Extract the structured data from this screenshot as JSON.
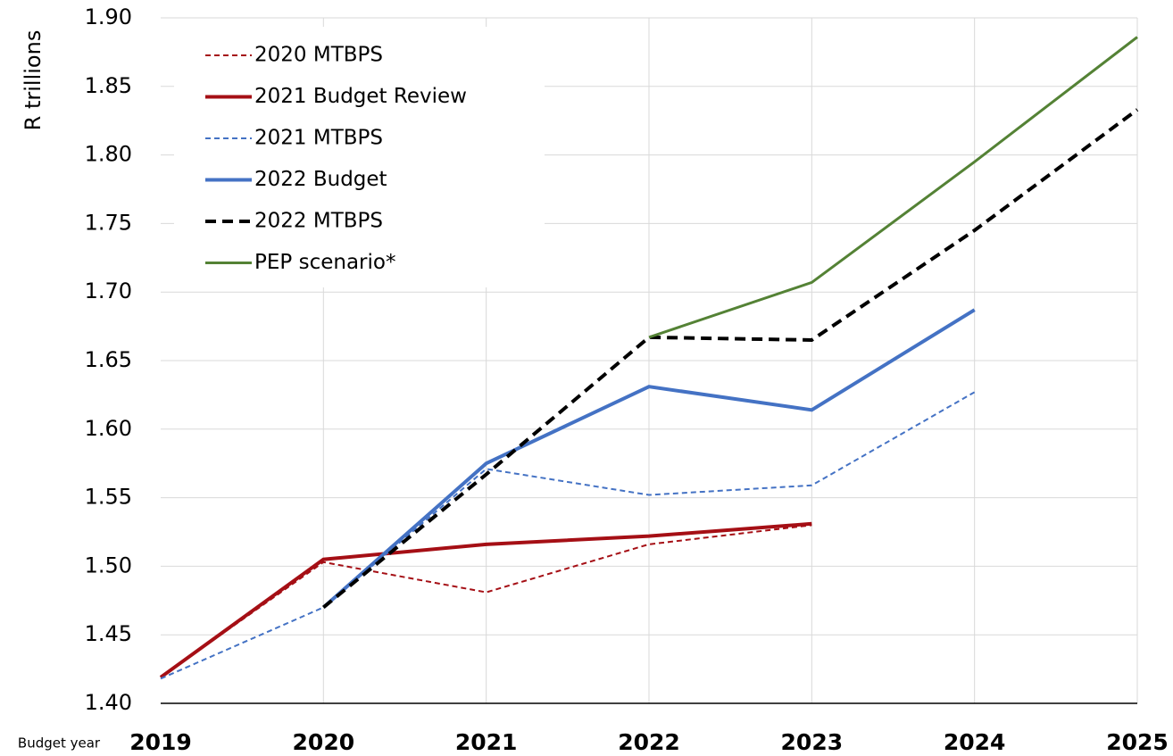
{
  "chart_data": {
    "type": "line",
    "y_label": "R trillions",
    "x_label": "Budget year",
    "categories": [
      "2019",
      "2020",
      "2021",
      "2022",
      "2023",
      "2024",
      "2025"
    ],
    "ylim": [
      1.4,
      1.9
    ],
    "yticks": [
      {
        "value": 1.4,
        "label": "1.40"
      },
      1.45,
      {
        "value": 1.5,
        "label": "1.50"
      },
      1.55,
      {
        "value": 1.6,
        "label": "1.60"
      },
      1.65,
      {
        "value": 1.7,
        "label": "1.70"
      },
      1.75,
      {
        "value": 1.8,
        "label": "1.80"
      },
      1.85,
      {
        "value": 1.9,
        "label": "1.90"
      }
    ],
    "grid": true,
    "legend": "upper left",
    "series": [
      {
        "name": "2020 MTBPS",
        "color": "#a50f15",
        "linestyle": "dashed",
        "weight": "thin",
        "values": [
          1.419,
          1.503,
          1.481,
          1.516,
          1.53,
          null,
          null
        ]
      },
      {
        "name": "2021 Budget Review",
        "color": "#a50f15",
        "linestyle": "solid",
        "weight": "bold",
        "values": [
          1.419,
          1.505,
          1.516,
          1.522,
          1.531,
          null,
          null
        ]
      },
      {
        "name": "2021 MTBPS",
        "color": "#4472c4",
        "linestyle": "dashed",
        "weight": "thin",
        "values": [
          1.418,
          1.47,
          1.571,
          1.552,
          1.559,
          1.627,
          null
        ]
      },
      {
        "name": "2022 Budget",
        "color": "#4472c4",
        "linestyle": "solid",
        "weight": "bold",
        "values": [
          null,
          1.47,
          1.575,
          1.631,
          1.614,
          1.687,
          null
        ]
      },
      {
        "name": "2022 MTBPS",
        "color": "#000000",
        "linestyle": "dashed",
        "weight": "bold",
        "values": [
          null,
          1.47,
          1.567,
          1.667,
          1.665,
          1.745,
          1.833
        ]
      },
      {
        "name": "PEP scenario*",
        "color": "#548235",
        "linestyle": "solid",
        "weight": "medium",
        "values": [
          null,
          null,
          null,
          1.667,
          1.707,
          1.795,
          1.886
        ]
      }
    ]
  }
}
